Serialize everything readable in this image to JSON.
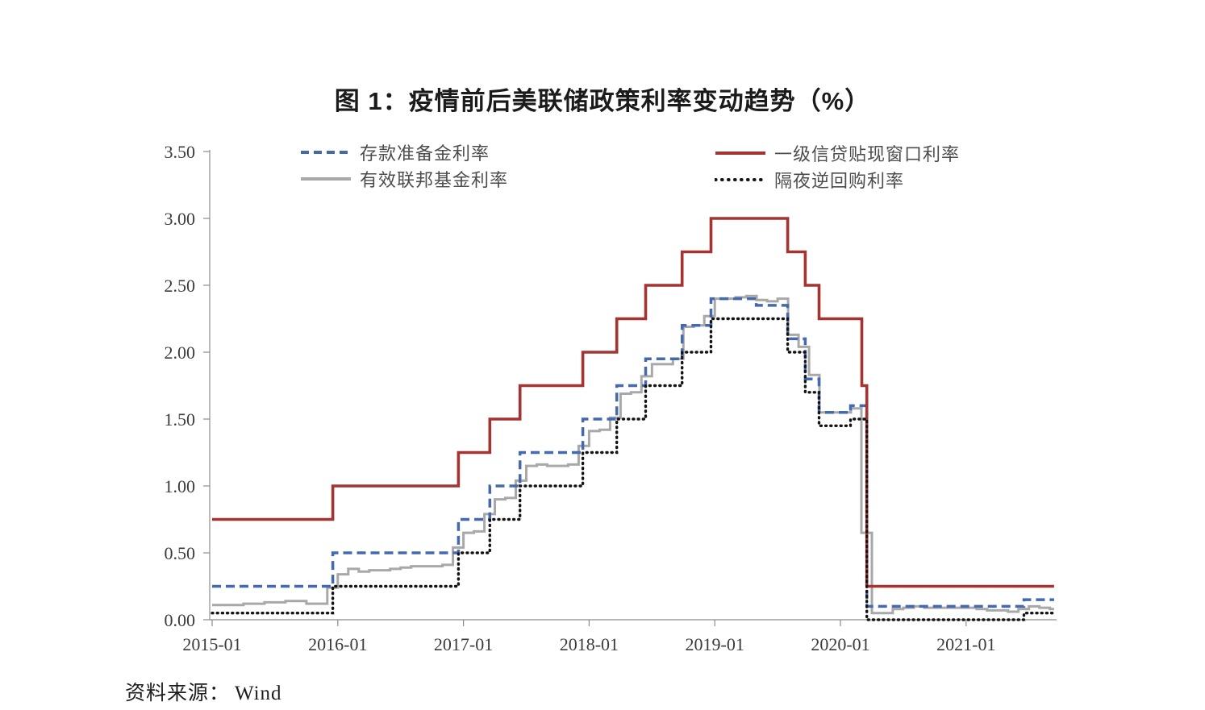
{
  "page": {
    "title": "图 1：疫情前后美联储政策利率变动趋势（%）",
    "source_label": "资料来源：",
    "source_value": "Wind"
  },
  "chart_data": {
    "type": "line",
    "step": true,
    "title": "图 1：疫情前后美联储政策利率变动趋势（%）",
    "unit": "%",
    "grid": false,
    "legend_position": "top",
    "x_axis": {
      "ticks": [
        "2015-01",
        "2016-01",
        "2017-01",
        "2018-01",
        "2019-01",
        "2020-01",
        "2021-01"
      ],
      "start_year": 2015.0,
      "end_year": 2021.7
    },
    "y_axis": {
      "tick_labels": [
        "0.00",
        "0.50",
        "1.00",
        "1.50",
        "2.00",
        "2.50",
        "3.00",
        "3.50"
      ],
      "ylim": [
        0,
        3.5
      ]
    },
    "series": [
      {
        "key": "ioer",
        "name": "存款准备金利率",
        "color": "#4569AF",
        "style": "dashed",
        "breakpoints": [
          [
            2015.0,
            0.25
          ],
          [
            2015.96,
            0.5
          ],
          [
            2016.96,
            0.75
          ],
          [
            2017.21,
            1.0
          ],
          [
            2017.45,
            1.25
          ],
          [
            2017.95,
            1.5
          ],
          [
            2018.22,
            1.75
          ],
          [
            2018.45,
            1.95
          ],
          [
            2018.74,
            2.2
          ],
          [
            2018.97,
            2.4
          ],
          [
            2019.33,
            2.35
          ],
          [
            2019.58,
            2.1
          ],
          [
            2019.72,
            1.8
          ],
          [
            2019.83,
            1.55
          ],
          [
            2020.08,
            1.6
          ],
          [
            2020.21,
            0.1
          ],
          [
            2021.46,
            0.15
          ]
        ]
      },
      {
        "key": "effr",
        "name": "有效联邦基金利率",
        "color": "#A8A8A8",
        "style": "solid",
        "monthly": {
          "start_year": 2015.0,
          "values": [
            0.11,
            0.11,
            0.11,
            0.12,
            0.12,
            0.13,
            0.13,
            0.14,
            0.14,
            0.12,
            0.12,
            0.24,
            0.34,
            0.38,
            0.36,
            0.37,
            0.37,
            0.38,
            0.39,
            0.4,
            0.4,
            0.4,
            0.41,
            0.54,
            0.65,
            0.66,
            0.79,
            0.9,
            0.91,
            1.04,
            1.15,
            1.16,
            1.15,
            1.15,
            1.16,
            1.3,
            1.41,
            1.42,
            1.51,
            1.69,
            1.7,
            1.82,
            1.91,
            1.91,
            1.95,
            2.19,
            2.2,
            2.27,
            2.4,
            2.4,
            2.41,
            2.42,
            2.39,
            2.38,
            2.4,
            2.13,
            2.04,
            1.83,
            1.55,
            1.55,
            1.55,
            1.58,
            0.65,
            0.05,
            0.05,
            0.08,
            0.09,
            0.1,
            0.09,
            0.09,
            0.09,
            0.09,
            0.09,
            0.08,
            0.07,
            0.07,
            0.06,
            0.08,
            0.1,
            0.09,
            0.08
          ]
        }
      },
      {
        "key": "discount",
        "name": "一级信贷贴现窗口利率",
        "color": "#A33432",
        "style": "solid",
        "breakpoints": [
          [
            2015.0,
            0.75
          ],
          [
            2015.96,
            1.0
          ],
          [
            2016.96,
            1.25
          ],
          [
            2017.21,
            1.5
          ],
          [
            2017.45,
            1.75
          ],
          [
            2017.95,
            2.0
          ],
          [
            2018.22,
            2.25
          ],
          [
            2018.45,
            2.5
          ],
          [
            2018.74,
            2.75
          ],
          [
            2018.97,
            3.0
          ],
          [
            2019.58,
            2.75
          ],
          [
            2019.72,
            2.5
          ],
          [
            2019.83,
            2.25
          ],
          [
            2020.17,
            1.75
          ],
          [
            2020.21,
            0.25
          ]
        ]
      },
      {
        "key": "onrrp",
        "name": "隔夜逆回购利率",
        "color": "#141414",
        "style": "dotted",
        "breakpoints": [
          [
            2015.0,
            0.05
          ],
          [
            2015.96,
            0.25
          ],
          [
            2016.96,
            0.5
          ],
          [
            2017.21,
            0.75
          ],
          [
            2017.45,
            1.0
          ],
          [
            2017.95,
            1.25
          ],
          [
            2018.22,
            1.5
          ],
          [
            2018.45,
            1.75
          ],
          [
            2018.74,
            2.0
          ],
          [
            2018.97,
            2.25
          ],
          [
            2019.58,
            2.0
          ],
          [
            2019.72,
            1.7
          ],
          [
            2019.83,
            1.45
          ],
          [
            2020.08,
            1.5
          ],
          [
            2020.21,
            0.0
          ],
          [
            2021.46,
            0.05
          ]
        ]
      }
    ]
  }
}
